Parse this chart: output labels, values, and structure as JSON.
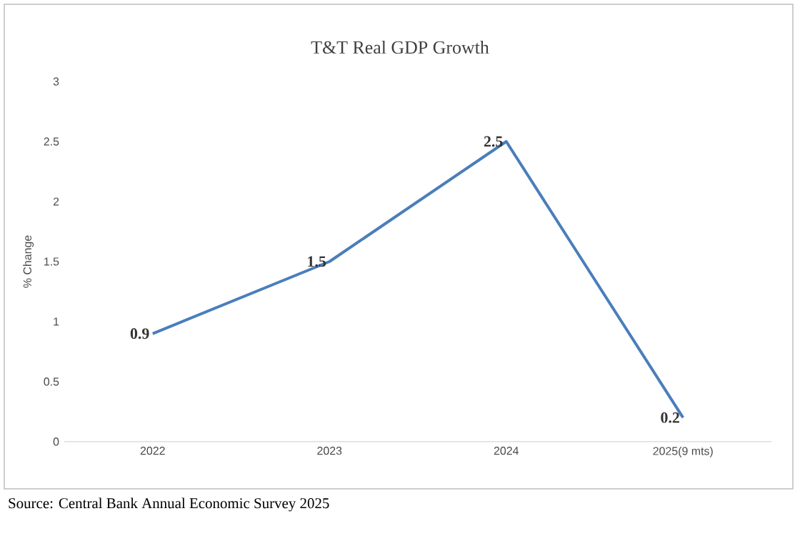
{
  "chart_data": {
    "type": "line",
    "title": "T&T Real GDP Growth",
    "ylabel": "% Change",
    "categories": [
      "2022",
      "2023",
      "2024",
      "2025(9 mts)"
    ],
    "series": [
      {
        "color": "#4a7ebb",
        "values": [
          0.9,
          1.5,
          2.5,
          0.2
        ]
      }
    ],
    "ylim": [
      0,
      3
    ],
    "yticks": [
      0,
      0.5,
      1,
      1.5,
      2,
      2.5,
      3
    ],
    "data_labels": true,
    "marker": "none",
    "line_style": "solid",
    "grid": false,
    "annotations": [
      "Source: Central Bank Annual Economic Survey 2025"
    ]
  }
}
